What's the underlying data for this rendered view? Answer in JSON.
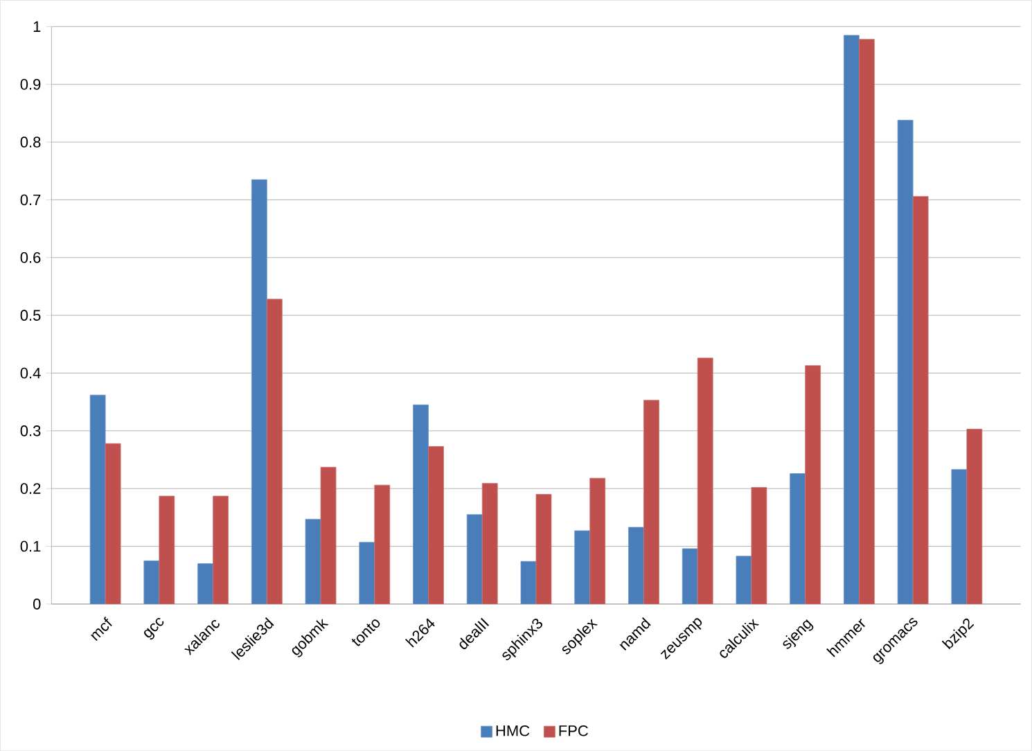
{
  "chart_data": {
    "type": "bar",
    "categories": [
      "mcf",
      "gcc",
      "xalanc",
      "leslie3d",
      "gobmk",
      "tonto",
      "h264",
      "dealII",
      "sphinx3",
      "soplex",
      "namd",
      "zeusmp",
      "calculix",
      "sjeng",
      "hmmer",
      "gromacs",
      "bzip2"
    ],
    "series": [
      {
        "name": "HMC",
        "color": "#4a7ebb",
        "values": [
          0.362,
          0.075,
          0.07,
          0.735,
          0.147,
          0.107,
          0.345,
          0.155,
          0.074,
          0.127,
          0.133,
          0.096,
          0.083,
          0.226,
          0.985,
          0.838,
          0.233
        ]
      },
      {
        "name": "FPC",
        "color": "#c0504d",
        "values": [
          0.278,
          0.187,
          0.187,
          0.528,
          0.237,
          0.206,
          0.273,
          0.209,
          0.19,
          0.218,
          0.353,
          0.426,
          0.202,
          0.413,
          0.978,
          0.706,
          0.303
        ]
      }
    ],
    "ylim": [
      0,
      1
    ],
    "yticks": [
      0,
      0.1,
      0.2,
      0.3,
      0.4,
      0.5,
      0.6,
      0.7,
      0.8,
      0.9,
      1
    ],
    "grid": "y",
    "legend": "bottom"
  }
}
